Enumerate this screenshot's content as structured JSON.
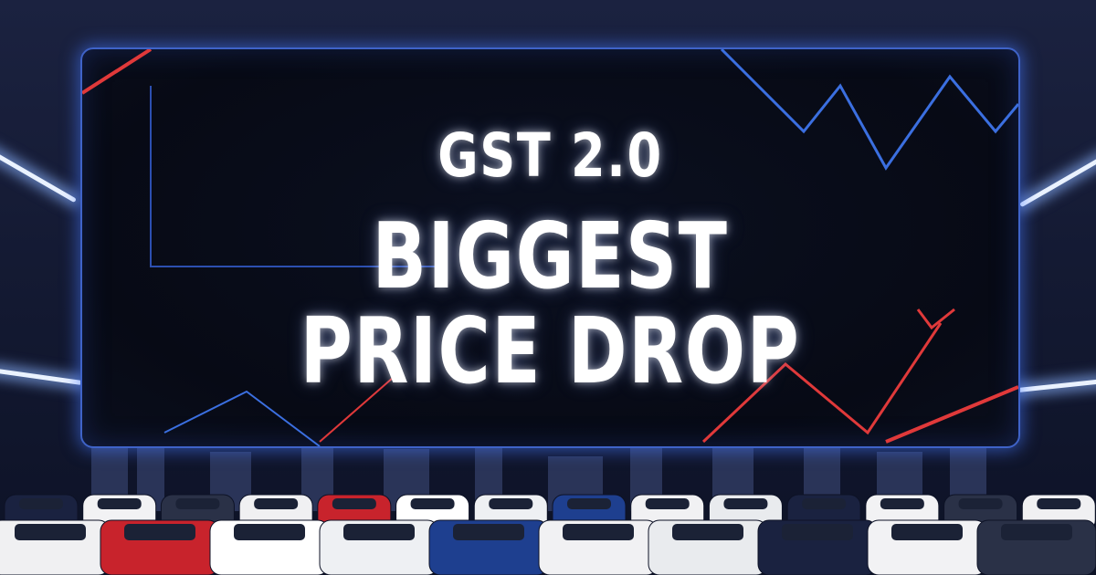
{
  "headline": {
    "line1": "GST 2.0",
    "line2": "BIGGEST",
    "line3": "PRICE DROP"
  },
  "colors": {
    "background": "#141a33",
    "panel_border": "#3f63c8",
    "accent_red": "#e0393a",
    "accent_blue": "#3b6fe0",
    "text": "#ffffff"
  },
  "cars": [
    "#1a2240",
    "#f2f2f4",
    "#2a3147",
    "#f0f0f2",
    "#c8232c",
    "#ffffff",
    "#eef0f3",
    "#1e3f8f",
    "#f1f1f3",
    "#e9ebee"
  ]
}
